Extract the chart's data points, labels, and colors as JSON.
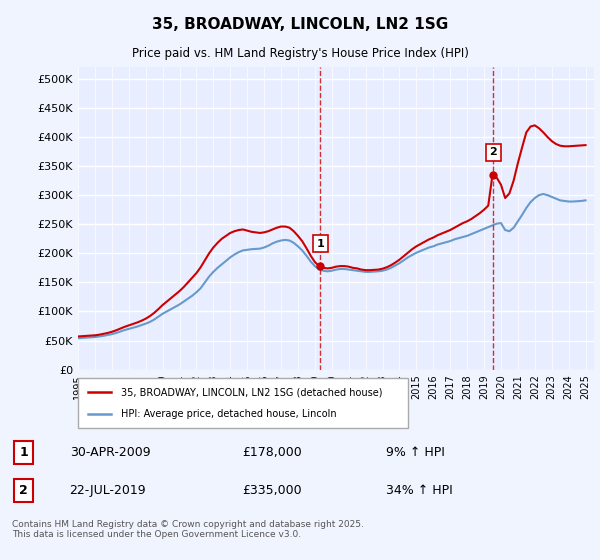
{
  "title": "35, BROADWAY, LINCOLN, LN2 1SG",
  "subtitle": "Price paid vs. HM Land Registry's House Price Index (HPI)",
  "ylabel_ticks": [
    "£0",
    "£50K",
    "£100K",
    "£150K",
    "£200K",
    "£250K",
    "£300K",
    "£350K",
    "£400K",
    "£450K",
    "£500K"
  ],
  "ytick_vals": [
    0,
    50000,
    100000,
    150000,
    200000,
    250000,
    300000,
    350000,
    400000,
    450000,
    500000
  ],
  "ylim": [
    0,
    520000
  ],
  "xlim_start": 1995.0,
  "xlim_end": 2025.5,
  "marker1_x": 2009.33,
  "marker1_y": 178000,
  "marker1_label": "1",
  "marker1_date": "30-APR-2009",
  "marker1_price": "£178,000",
  "marker1_hpi": "9% ↑ HPI",
  "marker2_x": 2019.55,
  "marker2_y": 335000,
  "marker2_label": "2",
  "marker2_date": "22-JUL-2019",
  "marker2_price": "£335,000",
  "marker2_hpi": "34% ↑ HPI",
  "vline1_x": 2009.33,
  "vline2_x": 2019.55,
  "legend_line1": "35, BROADWAY, LINCOLN, LN2 1SG (detached house)",
  "legend_line2": "HPI: Average price, detached house, Lincoln",
  "footer": "Contains HM Land Registry data © Crown copyright and database right 2025.\nThis data is licensed under the Open Government Licence v3.0.",
  "line_color_red": "#cc0000",
  "line_color_blue": "#6699cc",
  "background_color": "#f0f4ff",
  "plot_bg": "#e8eeff",
  "grid_color": "#ffffff",
  "hpi_data_x": [
    1995.0,
    1995.25,
    1995.5,
    1995.75,
    1996.0,
    1996.25,
    1996.5,
    1996.75,
    1997.0,
    1997.25,
    1997.5,
    1997.75,
    1998.0,
    1998.25,
    1998.5,
    1998.75,
    1999.0,
    1999.25,
    1999.5,
    1999.75,
    2000.0,
    2000.25,
    2000.5,
    2000.75,
    2001.0,
    2001.25,
    2001.5,
    2001.75,
    2002.0,
    2002.25,
    2002.5,
    2002.75,
    2003.0,
    2003.25,
    2003.5,
    2003.75,
    2004.0,
    2004.25,
    2004.5,
    2004.75,
    2005.0,
    2005.25,
    2005.5,
    2005.75,
    2006.0,
    2006.25,
    2006.5,
    2006.75,
    2007.0,
    2007.25,
    2007.5,
    2007.75,
    2008.0,
    2008.25,
    2008.5,
    2008.75,
    2009.0,
    2009.25,
    2009.5,
    2009.75,
    2010.0,
    2010.25,
    2010.5,
    2010.75,
    2011.0,
    2011.25,
    2011.5,
    2011.75,
    2012.0,
    2012.25,
    2012.5,
    2012.75,
    2013.0,
    2013.25,
    2013.5,
    2013.75,
    2014.0,
    2014.25,
    2014.5,
    2014.75,
    2015.0,
    2015.25,
    2015.5,
    2015.75,
    2016.0,
    2016.25,
    2016.5,
    2016.75,
    2017.0,
    2017.25,
    2017.5,
    2017.75,
    2018.0,
    2018.25,
    2018.5,
    2018.75,
    2019.0,
    2019.25,
    2019.5,
    2019.75,
    2020.0,
    2020.25,
    2020.5,
    2020.75,
    2021.0,
    2021.25,
    2021.5,
    2021.75,
    2022.0,
    2022.25,
    2022.5,
    2022.75,
    2023.0,
    2023.25,
    2023.5,
    2023.75,
    2024.0,
    2024.25,
    2024.5,
    2024.75,
    2025.0
  ],
  "hpi_data_y": [
    54000,
    54500,
    55000,
    55500,
    56000,
    57000,
    58000,
    59500,
    61000,
    63000,
    65500,
    68000,
    70000,
    72000,
    74000,
    76500,
    79000,
    82000,
    86000,
    91000,
    96000,
    100000,
    104000,
    108000,
    112000,
    117000,
    122000,
    127000,
    133000,
    140000,
    150000,
    160000,
    168000,
    175000,
    181000,
    187000,
    193000,
    198000,
    202000,
    205000,
    206000,
    207000,
    207500,
    208000,
    210000,
    213000,
    217000,
    220000,
    222000,
    223000,
    222000,
    218000,
    212000,
    205000,
    196000,
    186000,
    178000,
    172000,
    170000,
    169000,
    170000,
    172000,
    173000,
    173000,
    172000,
    171000,
    170000,
    169000,
    168000,
    168000,
    168500,
    169000,
    170000,
    172000,
    175000,
    179000,
    183000,
    188000,
    193000,
    197000,
    201000,
    204000,
    207000,
    210000,
    212000,
    215000,
    217000,
    219000,
    221000,
    224000,
    226000,
    228000,
    230000,
    233000,
    236000,
    239000,
    242000,
    245000,
    248000,
    251000,
    252000,
    240000,
    238000,
    244000,
    255000,
    266000,
    278000,
    288000,
    295000,
    300000,
    302000,
    300000,
    297000,
    294000,
    291000,
    290000,
    289000,
    289000,
    289500,
    290000,
    291000
  ],
  "price_data_x": [
    1995.0,
    1995.25,
    1995.5,
    1995.75,
    1996.0,
    1996.25,
    1996.5,
    1996.75,
    1997.0,
    1997.25,
    1997.5,
    1997.75,
    1998.0,
    1998.25,
    1998.5,
    1998.75,
    1999.0,
    1999.25,
    1999.5,
    1999.75,
    2000.0,
    2000.25,
    2000.5,
    2000.75,
    2001.0,
    2001.25,
    2001.5,
    2001.75,
    2002.0,
    2002.25,
    2002.5,
    2002.75,
    2003.0,
    2003.25,
    2003.5,
    2003.75,
    2004.0,
    2004.25,
    2004.5,
    2004.75,
    2005.0,
    2005.25,
    2005.5,
    2005.75,
    2006.0,
    2006.25,
    2006.5,
    2006.75,
    2007.0,
    2007.25,
    2007.5,
    2007.75,
    2008.0,
    2008.25,
    2008.5,
    2008.75,
    2009.0,
    2009.25,
    2009.5,
    2009.75,
    2010.0,
    2010.25,
    2010.5,
    2010.75,
    2011.0,
    2011.25,
    2011.5,
    2011.75,
    2012.0,
    2012.25,
    2012.5,
    2012.75,
    2013.0,
    2013.25,
    2013.5,
    2013.75,
    2014.0,
    2014.25,
    2014.5,
    2014.75,
    2015.0,
    2015.25,
    2015.5,
    2015.75,
    2016.0,
    2016.25,
    2016.5,
    2016.75,
    2017.0,
    2017.25,
    2017.5,
    2017.75,
    2018.0,
    2018.25,
    2018.5,
    2018.75,
    2019.0,
    2019.25,
    2019.5,
    2019.75,
    2020.0,
    2020.25,
    2020.5,
    2020.75,
    2021.0,
    2021.25,
    2021.5,
    2021.75,
    2022.0,
    2022.25,
    2022.5,
    2022.75,
    2023.0,
    2023.25,
    2023.5,
    2023.75,
    2024.0,
    2024.25,
    2024.5,
    2024.75,
    2025.0
  ],
  "price_data_y": [
    57000,
    57500,
    58000,
    58500,
    59000,
    60000,
    61500,
    63000,
    65000,
    67500,
    70500,
    73500,
    76000,
    78500,
    81000,
    84000,
    87500,
    92000,
    97500,
    104000,
    111000,
    117000,
    123000,
    129000,
    135000,
    142000,
    150000,
    158000,
    166000,
    176000,
    188000,
    200000,
    210000,
    218000,
    225000,
    230000,
    235000,
    238000,
    240000,
    241000,
    239000,
    237000,
    236000,
    235000,
    236000,
    238000,
    241000,
    244000,
    246000,
    246000,
    244000,
    238000,
    230000,
    221000,
    209000,
    196000,
    185000,
    178000,
    175000,
    174000,
    175000,
    177000,
    178000,
    178000,
    177000,
    175000,
    174000,
    172000,
    171000,
    171000,
    171500,
    172000,
    173500,
    176000,
    179500,
    184000,
    189000,
    195000,
    201000,
    207000,
    212000,
    216000,
    220000,
    224000,
    227000,
    231000,
    234000,
    237000,
    240000,
    244000,
    248000,
    252000,
    255000,
    259000,
    264000,
    269000,
    275000,
    282000,
    335000,
    330000,
    318000,
    295000,
    303000,
    325000,
    355000,
    382000,
    408000,
    418000,
    420000,
    415000,
    408000,
    400000,
    393000,
    388000,
    385000,
    384000,
    384000,
    384500,
    385000,
    385500,
    386000
  ],
  "xtick_years": [
    1995,
    1996,
    1997,
    1998,
    1999,
    2000,
    2001,
    2002,
    2003,
    2004,
    2005,
    2006,
    2007,
    2008,
    2009,
    2010,
    2011,
    2012,
    2013,
    2014,
    2015,
    2016,
    2017,
    2018,
    2019,
    2020,
    2021,
    2022,
    2023,
    2024,
    2025
  ]
}
